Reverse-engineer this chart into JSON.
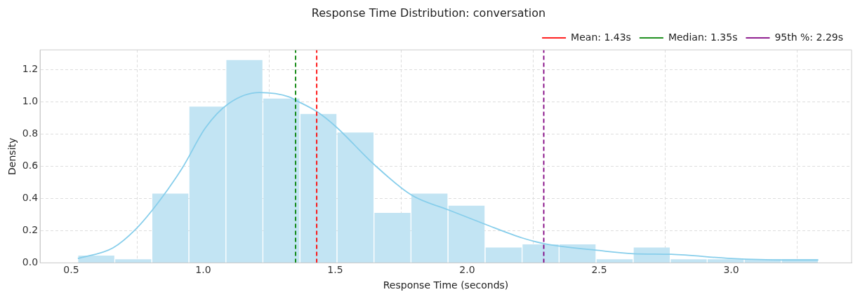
{
  "chart_data": {
    "type": "histogram",
    "title": "Response Time Distribution: conversation",
    "xlabel": "Response Time (seconds)",
    "ylabel": "Density",
    "bins": [
      0.525,
      0.665,
      0.805,
      0.946,
      1.086,
      1.226,
      1.366,
      1.507,
      1.647,
      1.787,
      1.927,
      2.068,
      2.208,
      2.348,
      2.488,
      2.629,
      2.769,
      2.909,
      3.049,
      3.19,
      3.33
    ],
    "series": [
      {
        "type": "histogram",
        "color": "#c2e4f3",
        "values": [
          0.045,
          0.022,
          0.43,
          0.97,
          1.26,
          1.02,
          0.925,
          0.81,
          0.31,
          0.43,
          0.355,
          0.095,
          0.115,
          0.115,
          0.022,
          0.095,
          0.022,
          0.022,
          0.022,
          0.022
        ]
      },
      {
        "type": "line",
        "color": "#87ceeb",
        "x": [
          0.525,
          0.657,
          0.745,
          0.832,
          0.921,
          1.009,
          1.097,
          1.213,
          1.327,
          1.35,
          1.43,
          1.5,
          1.648,
          1.79,
          1.927,
          2.068,
          2.208,
          2.29,
          2.5,
          2.63,
          2.773,
          3.0,
          3.2,
          3.33
        ],
        "values": [
          0.027,
          0.092,
          0.21,
          0.38,
          0.59,
          0.84,
          0.99,
          1.058,
          1.03,
          1.01,
          0.94,
          0.85,
          0.61,
          0.42,
          0.33,
          0.24,
          0.155,
          0.12,
          0.077,
          0.057,
          0.053,
          0.027,
          0.018,
          0.018
        ]
      }
    ],
    "xlim": [
      0.382,
      3.456
    ],
    "ylim": [
      0,
      1.323
    ],
    "xticks": [
      {
        "value": 0.5,
        "label": "0.5"
      },
      {
        "value": 1,
        "label": "1.0"
      },
      {
        "value": 1.5,
        "label": "1.5"
      },
      {
        "value": 2,
        "label": "2.0"
      },
      {
        "value": 2.5,
        "label": "2.5"
      },
      {
        "value": 3,
        "label": "3.0"
      }
    ],
    "yticks": [
      {
        "value": 0,
        "label": "0.0"
      },
      {
        "value": 0.2,
        "label": "0.2"
      },
      {
        "value": 0.4,
        "label": "0.4"
      },
      {
        "value": 0.6,
        "label": "0.6"
      },
      {
        "value": 0.8,
        "label": "0.8"
      },
      {
        "value": 1,
        "label": "1.0"
      },
      {
        "value": 1.2,
        "label": "1.2"
      }
    ],
    "ref_lines": [
      {
        "axis": "x",
        "value": 1.43,
        "label": "Mean: 1.43s",
        "color": "#ff0000",
        "line_style": "dashed"
      },
      {
        "axis": "x",
        "value": 1.35,
        "label": "Median: 1.35s",
        "color": "#008000",
        "line_style": "dashed"
      },
      {
        "axis": "x",
        "value": 2.29,
        "label": "95th %: 2.29s",
        "color": "#800080",
        "line_style": "dashed"
      }
    ],
    "grid": true,
    "legend": "top right"
  }
}
